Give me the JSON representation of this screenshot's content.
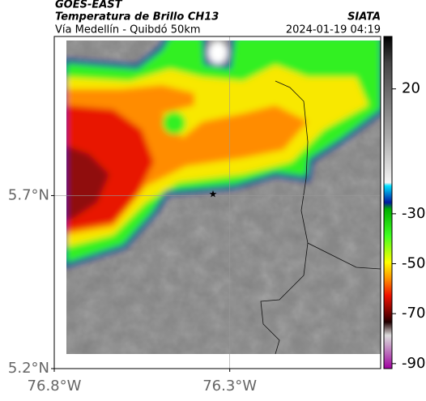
{
  "header": {
    "product": "GOES-EAST",
    "title": "Temperatura de Brillo CH13",
    "subtitle": "Vía Medellín - Quibdó 50km",
    "source": "SIATA",
    "datetime": "2024-01-19 04:19"
  },
  "map": {
    "lat_range": [
      5.2,
      6.16
    ],
    "lon_range": [
      -76.8,
      -75.87
    ],
    "lat_ticks": [
      {
        "value": 5.7,
        "label": "5.7°N"
      },
      {
        "value": 5.2,
        "label": "5.2°N"
      }
    ],
    "lon_ticks": [
      {
        "value": -76.8,
        "label": "76.8°W"
      },
      {
        "value": -76.3,
        "label": "76.3°W"
      }
    ]
  },
  "colorbar": {
    "range": [
      -92,
      41
    ],
    "ticks": [
      20,
      -30,
      -50,
      -70,
      -90
    ]
  }
}
